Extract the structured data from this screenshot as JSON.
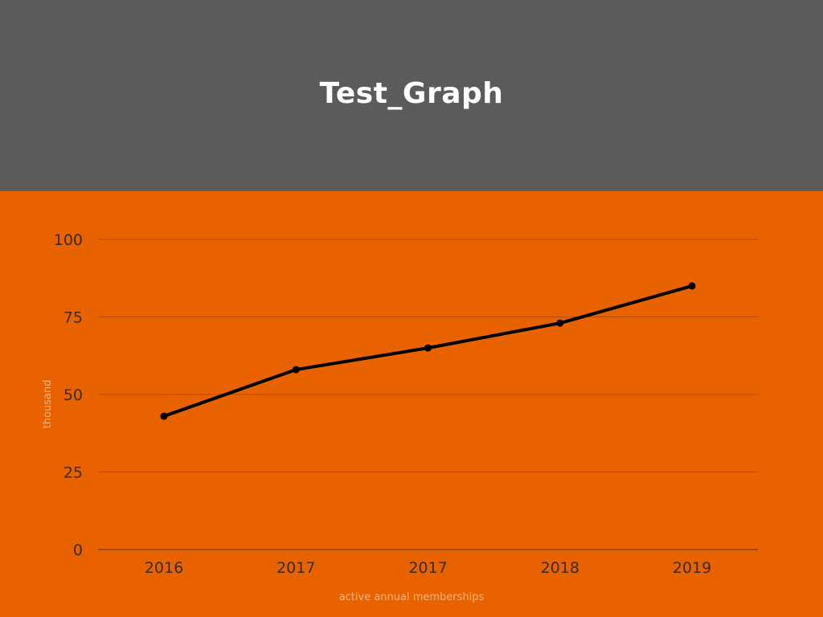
{
  "chart_data": {
    "type": "line",
    "title": "Test_Graph",
    "categories": [
      "2016",
      "2017",
      "2017",
      "2018",
      "2019"
    ],
    "series": [
      {
        "values": [
          43,
          58,
          65,
          73,
          85
        ]
      }
    ],
    "xlabel": "active annual memberships",
    "ylabel": "thousand",
    "ylim": [
      0,
      100
    ],
    "yticks": [
      0,
      25,
      50,
      75,
      100
    ],
    "grid": true,
    "legend": "none"
  },
  "colors": {
    "header_background": "#5b5b5b",
    "plot_background": "#e86200",
    "line": "#000000",
    "gridline": "#b34a00",
    "title_text": "#ffffff"
  }
}
